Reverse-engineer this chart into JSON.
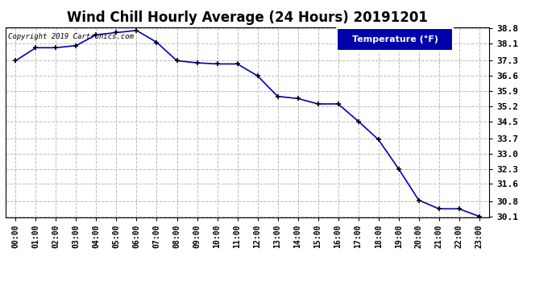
{
  "title": "Wind Chill Hourly Average (24 Hours) 20191201",
  "copyright_text": "Copyright 2019 Cartronics.com",
  "legend_label": "Temperature (°F)",
  "x_labels": [
    "00:00",
    "01:00",
    "02:00",
    "03:00",
    "04:00",
    "05:00",
    "06:00",
    "07:00",
    "08:00",
    "09:00",
    "10:00",
    "11:00",
    "12:00",
    "13:00",
    "14:00",
    "15:00",
    "16:00",
    "17:00",
    "18:00",
    "19:00",
    "20:00",
    "21:00",
    "22:00",
    "23:00"
  ],
  "y_values": [
    37.3,
    37.9,
    37.9,
    38.0,
    38.5,
    38.6,
    38.7,
    38.15,
    37.3,
    37.2,
    37.15,
    37.15,
    36.6,
    35.65,
    35.55,
    35.3,
    35.3,
    34.5,
    33.65,
    32.3,
    30.85,
    30.45,
    30.45,
    30.1
  ],
  "ylim_min": 30.1,
  "ylim_max": 38.8,
  "yticks": [
    30.1,
    30.8,
    31.6,
    32.3,
    33.0,
    33.7,
    34.5,
    35.2,
    35.9,
    36.6,
    37.3,
    38.1,
    38.8
  ],
  "line_color": "#0000bb",
  "marker_color": "#000000",
  "background_color": "#ffffff",
  "plot_bg_color": "#ffffff",
  "grid_color": "#bbbbbb",
  "title_fontsize": 12,
  "legend_bg_color": "#0000aa",
  "legend_text_color": "#ffffff",
  "legend_edge_color": "#ffffff"
}
